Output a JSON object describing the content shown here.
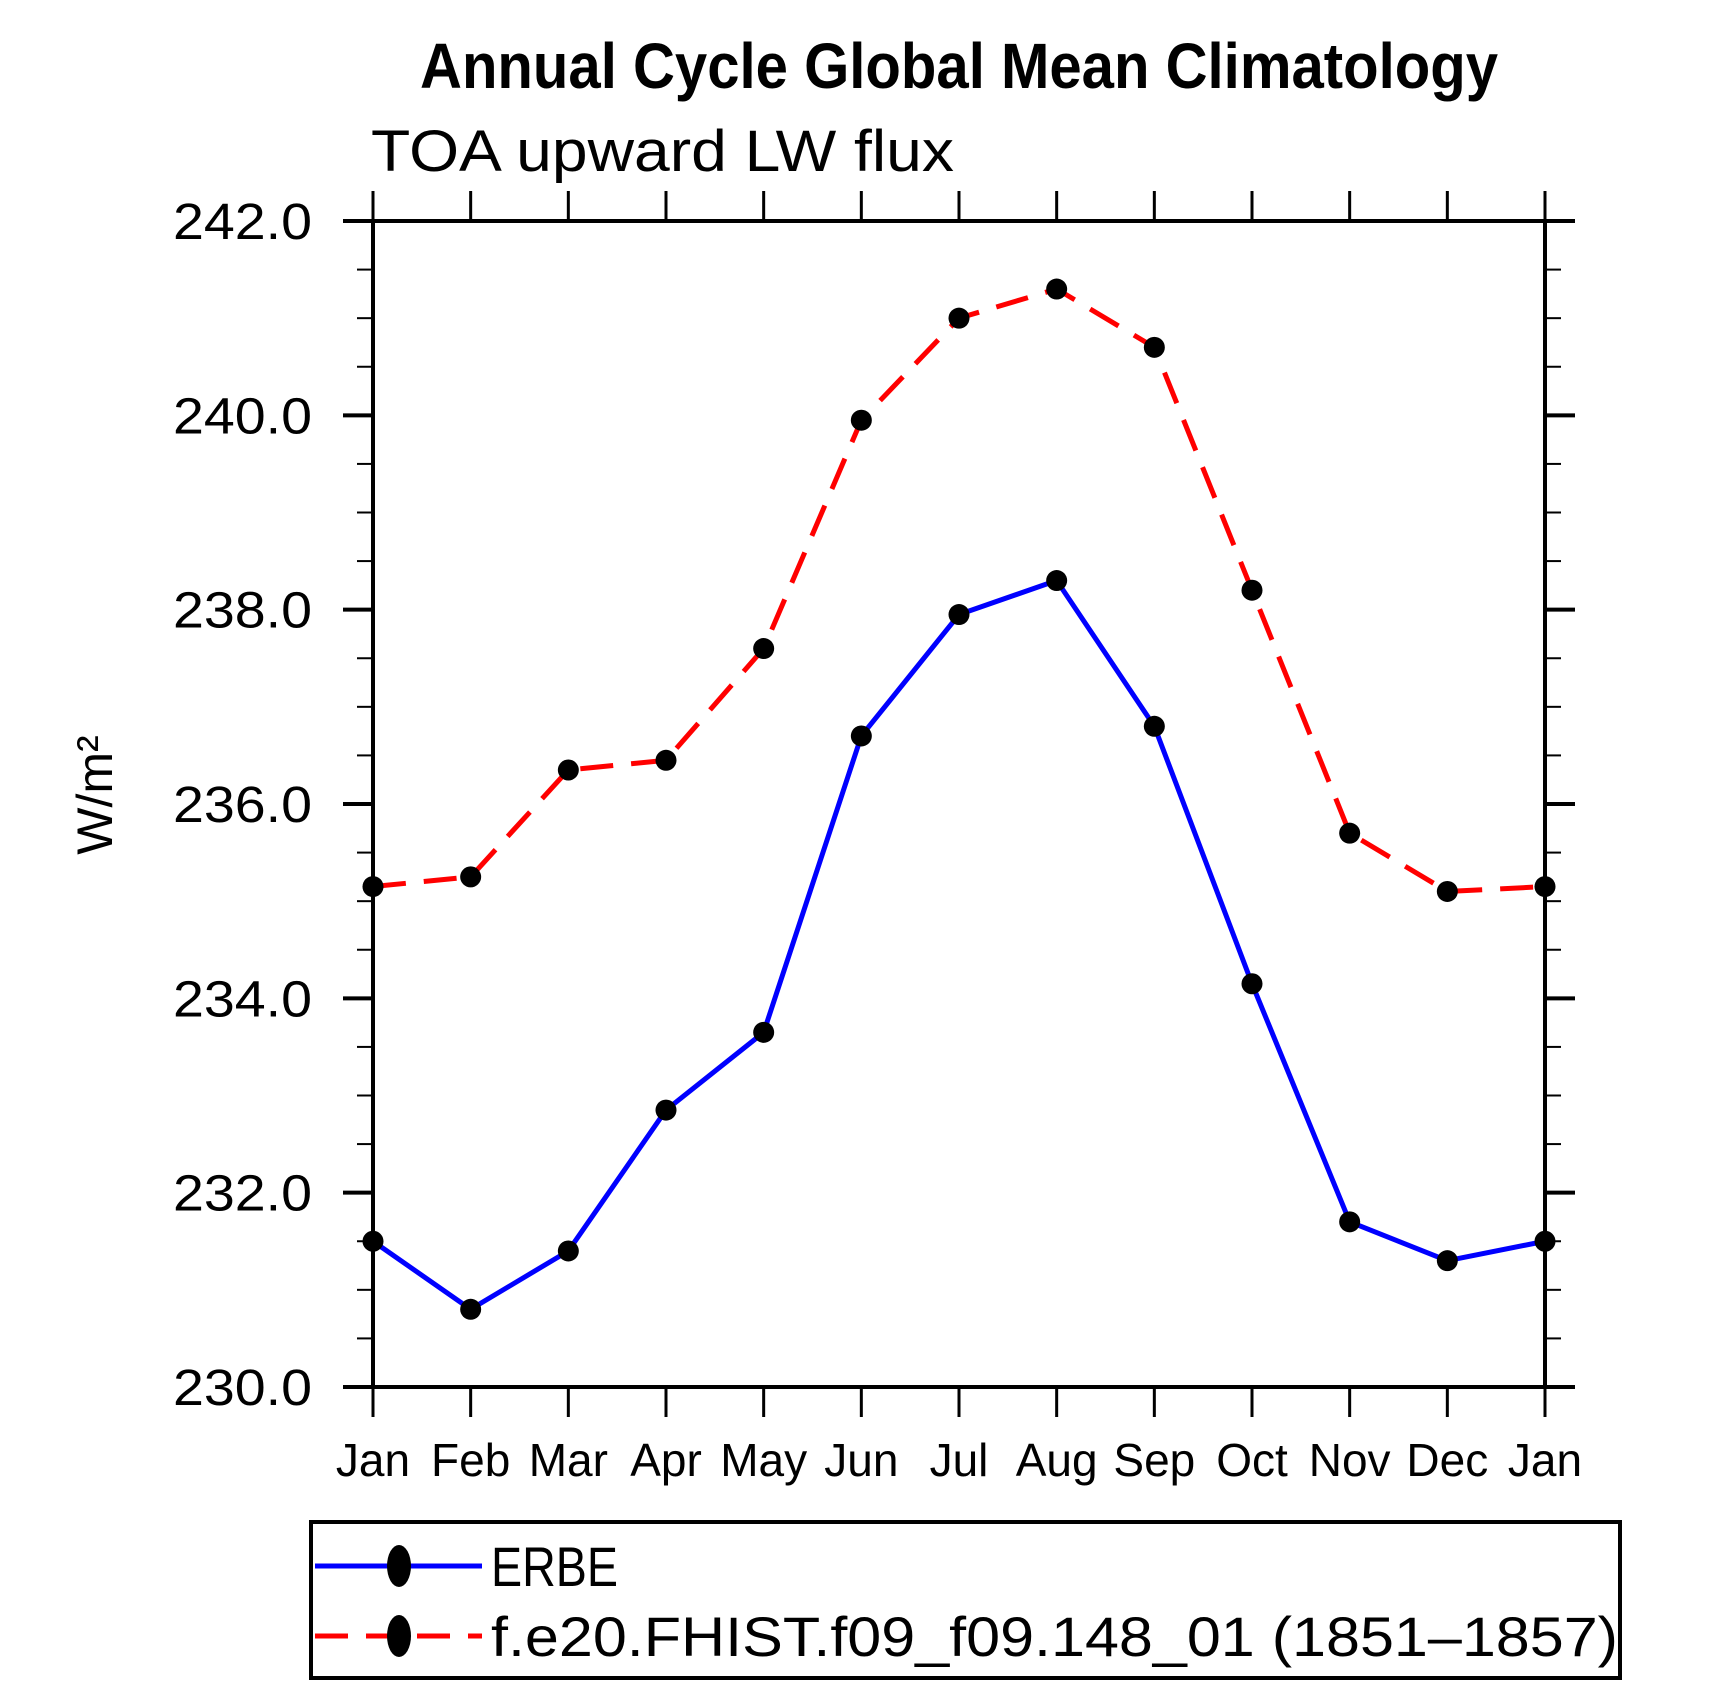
{
  "title": "Annual Cycle Global Mean Climatology",
  "subtitle": "TOA upward LW flux",
  "colors": {
    "background": "#ffffff",
    "axis": "#000000",
    "marker": "#000000",
    "erbe_line": "#0000ff",
    "model_line": "#ff0000"
  },
  "chart_data": {
    "type": "line",
    "title": "Annual Cycle Global Mean Climatology",
    "subtitle": "TOA upward LW flux",
    "xlabel": "",
    "ylabel": "W/m²",
    "categories": [
      "Jan",
      "Feb",
      "Mar",
      "Apr",
      "May",
      "Jun",
      "Jul",
      "Aug",
      "Sep",
      "Oct",
      "Nov",
      "Dec",
      "Jan"
    ],
    "ylim": [
      230.0,
      242.0
    ],
    "y_major_interval": 2.0,
    "y_minor_interval": 0.5,
    "ytick_labels": [
      "230.0",
      "232.0",
      "234.0",
      "236.0",
      "238.0",
      "240.0",
      "242.0"
    ],
    "grid": false,
    "legend_position": "bottom",
    "series": [
      {
        "name": "ERBE",
        "color": "#0000ff",
        "style": "solid",
        "marker": "circle",
        "marker_color": "#000000",
        "values": [
          231.5,
          230.8,
          231.4,
          232.85,
          233.65,
          236.7,
          237.95,
          238.3,
          236.8,
          234.15,
          231.7,
          231.3,
          231.5
        ]
      },
      {
        "name": "f.e20.FHIST.f09_f09.148_01 (1851–1857)",
        "color": "#ff0000",
        "style": "dashed",
        "marker": "circle",
        "marker_color": "#000000",
        "values": [
          235.15,
          235.25,
          236.35,
          236.45,
          237.6,
          239.95,
          241.0,
          241.3,
          240.7,
          238.2,
          235.7,
          235.1,
          235.15
        ]
      }
    ]
  }
}
